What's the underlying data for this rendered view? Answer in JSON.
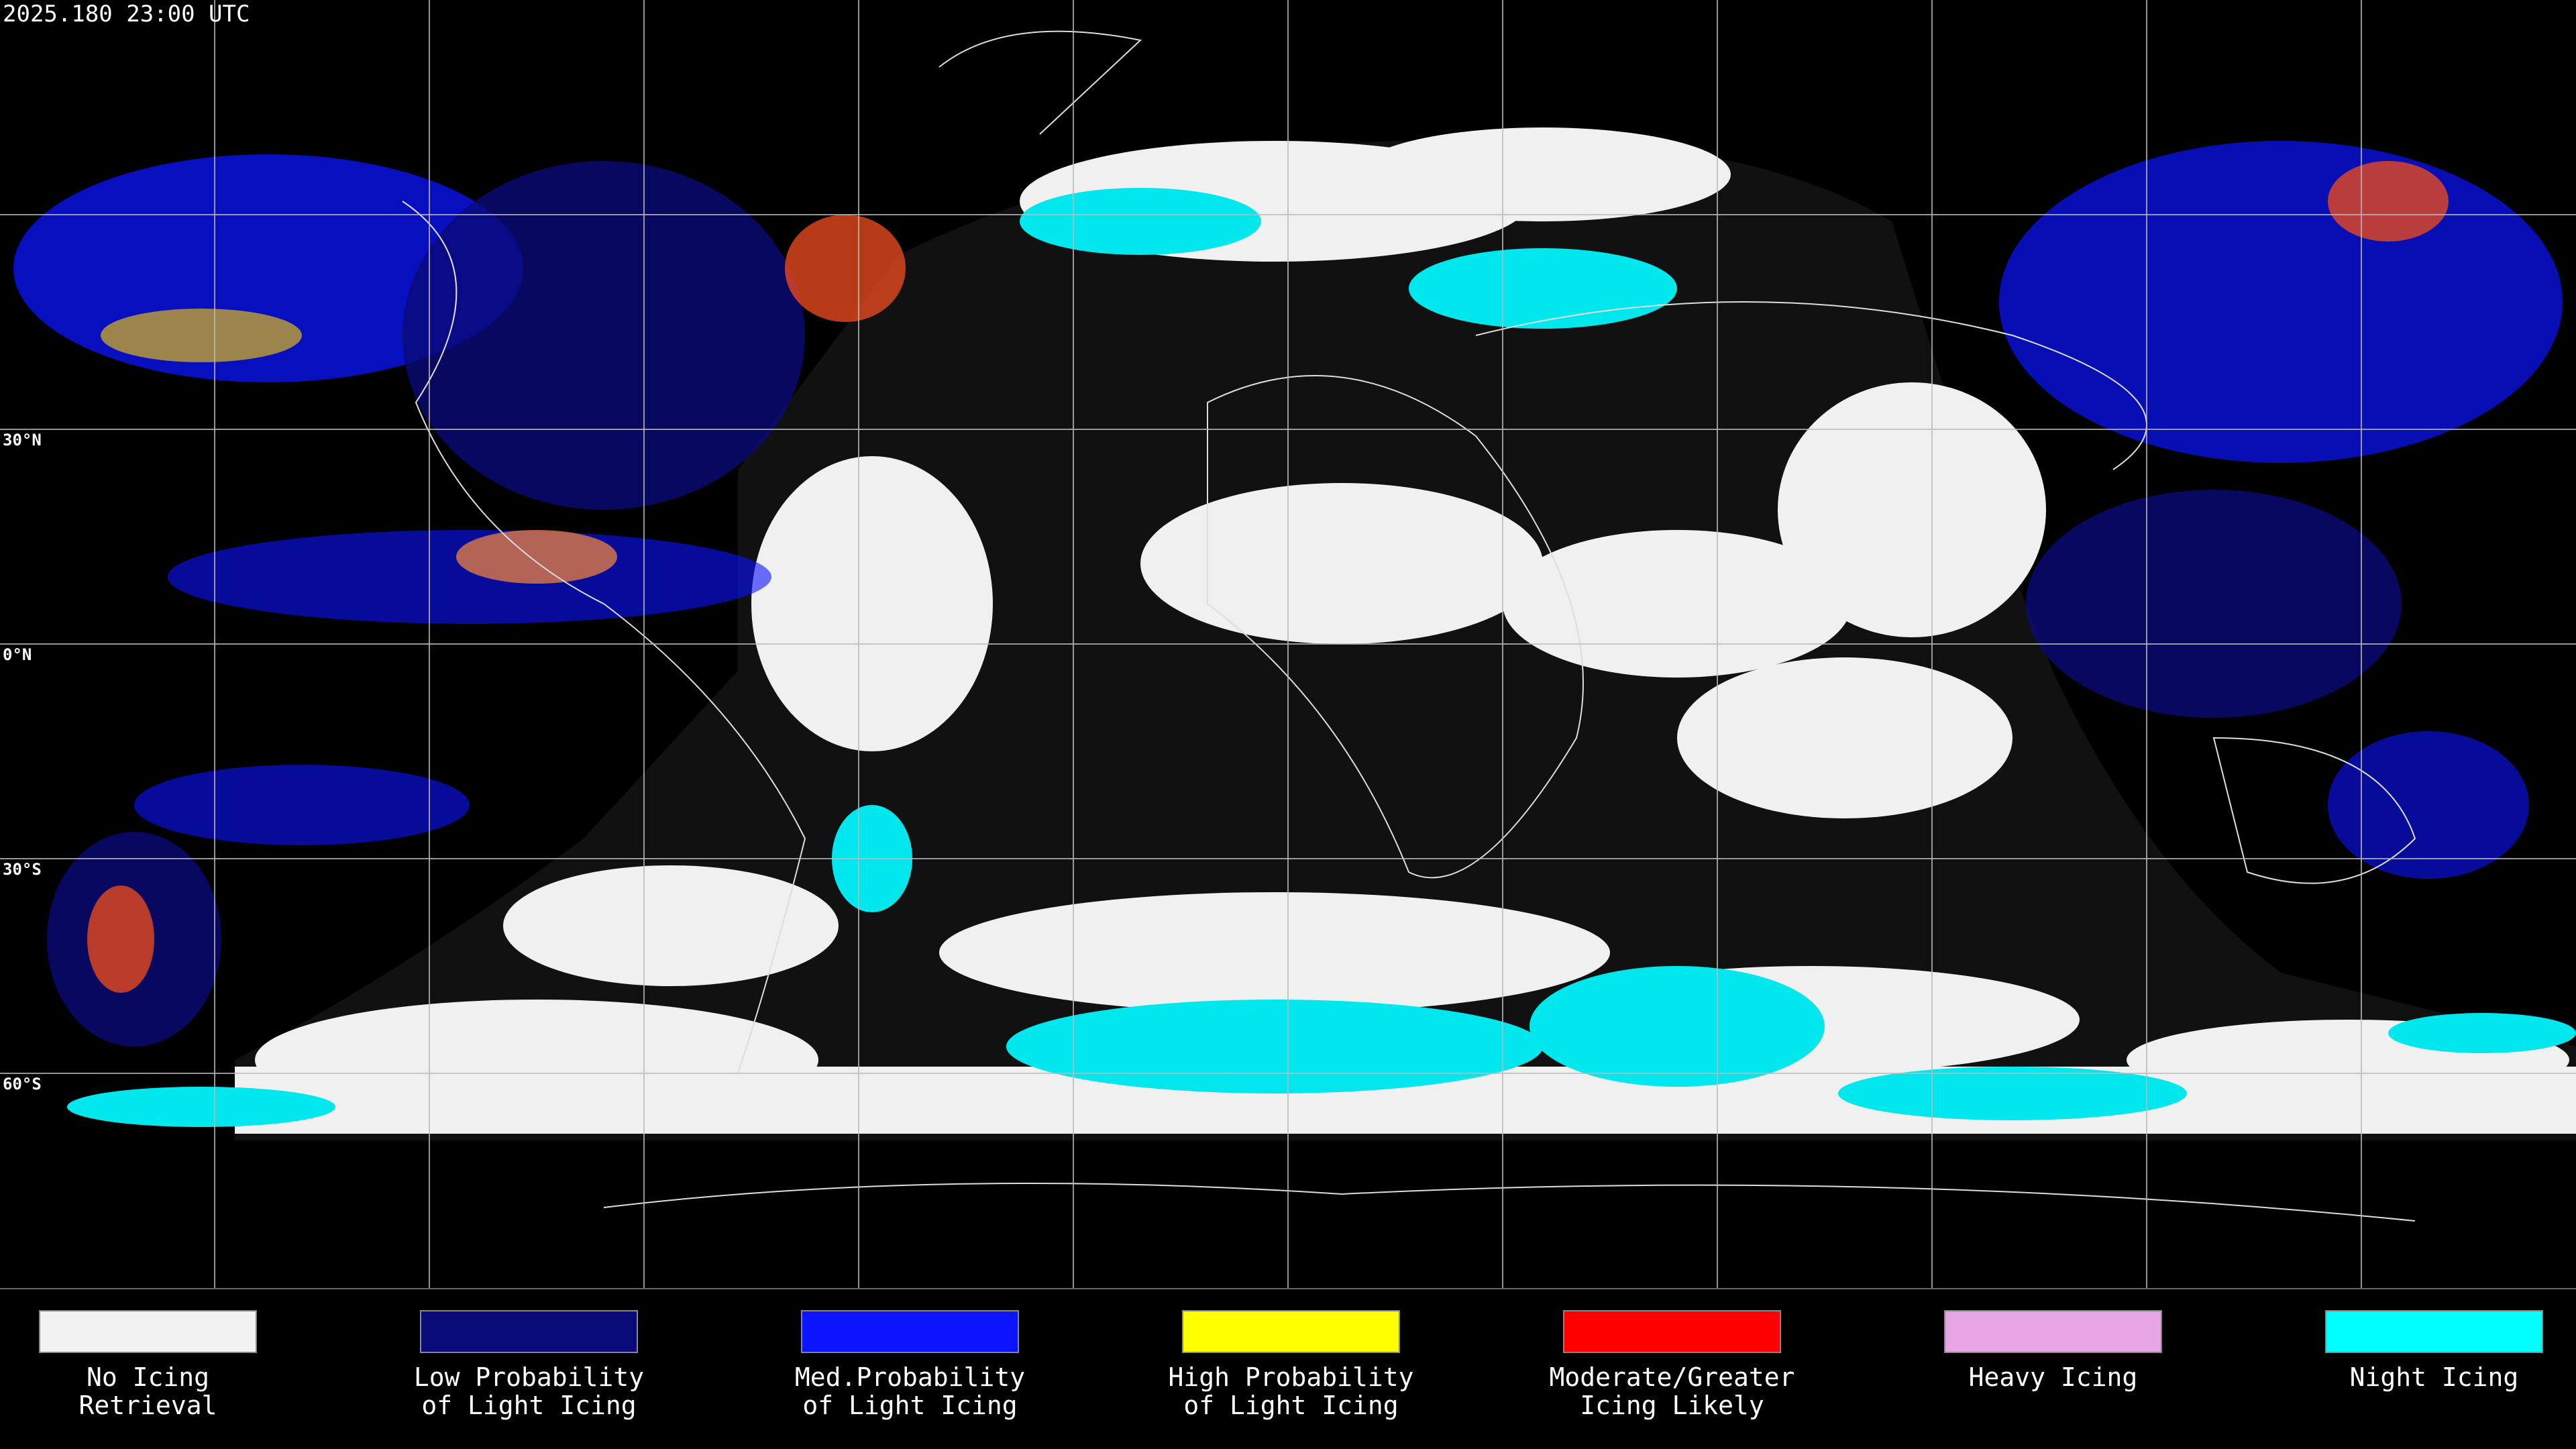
{
  "timestamp": "2025.180 23:00 UTC",
  "latitude_labels": [
    "30°N",
    "0°N",
    "30°S",
    "60°S"
  ],
  "legend": [
    {
      "lines": [
        "No Icing",
        "Retrieval"
      ],
      "color": "#f2f2f2"
    },
    {
      "lines": [
        "Low Probability",
        "of Light Icing"
      ],
      "color": "#0a0a78"
    },
    {
      "lines": [
        "Med.Probability",
        "of Light Icing"
      ],
      "color": "#0a14ff"
    },
    {
      "lines": [
        "High Probability",
        "of Light Icing"
      ],
      "color": "#ffff00"
    },
    {
      "lines": [
        "Moderate/Greater",
        "Icing Likely"
      ],
      "color": "#ff0000"
    },
    {
      "lines": [
        "Heavy Icing"
      ],
      "color": "#e6a6e6"
    },
    {
      "lines": [
        "Night Icing"
      ],
      "color": "#00ffff"
    }
  ]
}
